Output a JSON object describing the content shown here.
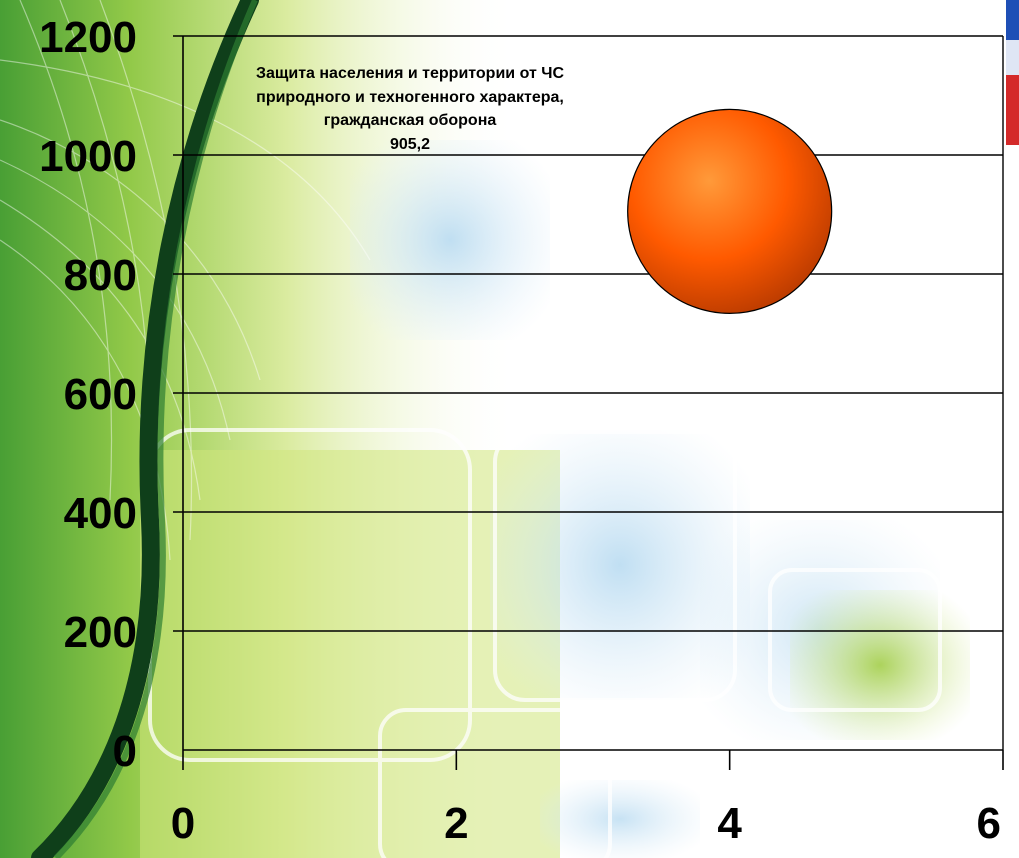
{
  "colors": {
    "bubble": "#ff5a00",
    "gridline": "#000000",
    "background_green": "#8cc63f",
    "background_blue": "#bcdcf0"
  },
  "chart_data": {
    "type": "bubble",
    "xlim": [
      0,
      6
    ],
    "ylim": [
      0,
      1200
    ],
    "x_ticks": [
      "0",
      "2",
      "4",
      "6"
    ],
    "y_ticks": [
      "0",
      "200",
      "400",
      "600",
      "800",
      "1000",
      "1200"
    ],
    "grid": true,
    "legend": "none",
    "points": [
      {
        "x": 4,
        "y": 905.2,
        "size": 905.2,
        "label": "Защита населения и территории от ЧС природного и техногенного характера, гражданская оборона",
        "value_label": "905,2",
        "color": "#ff5a00"
      }
    ]
  }
}
